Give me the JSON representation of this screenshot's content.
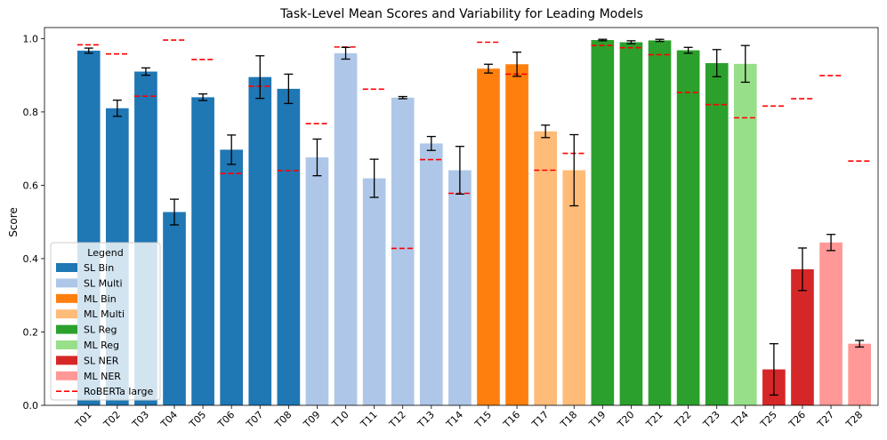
{
  "chart_data": {
    "type": "bar",
    "title": "Task-Level Mean Scores and Variability for Leading Models",
    "xlabel": "",
    "ylabel": "Score",
    "ylim": [
      0,
      1.03
    ],
    "yticks": [
      "0.0",
      "0.2",
      "0.4",
      "0.6",
      "0.8",
      "1.0"
    ],
    "categories": [
      "T01",
      "T02",
      "T03",
      "T04",
      "T05",
      "T06",
      "T07",
      "T08",
      "T09",
      "T10",
      "T11",
      "T12",
      "T13",
      "T14",
      "T15",
      "T16",
      "T17",
      "T18",
      "T19",
      "T20",
      "T21",
      "T22",
      "T23",
      "T24",
      "T25",
      "T26",
      "T27",
      "T28"
    ],
    "groups": [
      "SL Bin",
      "SL Bin",
      "SL Bin",
      "SL Bin",
      "SL Bin",
      "SL Bin",
      "SL Bin",
      "SL Bin",
      "SL Multi",
      "SL Multi",
      "SL Multi",
      "SL Multi",
      "SL Multi",
      "SL Multi",
      "ML Bin",
      "ML Bin",
      "ML Multi",
      "ML Multi",
      "SL Reg",
      "SL Reg",
      "SL Reg",
      "SL Reg",
      "SL Reg",
      "ML Reg",
      "SL NER",
      "SL NER",
      "ML NER",
      "ML NER"
    ],
    "values": [
      0.967,
      0.81,
      0.91,
      0.527,
      0.84,
      0.697,
      0.895,
      0.863,
      0.676,
      0.96,
      0.619,
      0.839,
      0.714,
      0.641,
      0.918,
      0.93,
      0.747,
      0.641,
      0.996,
      0.99,
      0.995,
      0.968,
      0.933,
      0.931,
      0.098,
      0.371,
      0.444,
      0.168
    ],
    "errors": [
      0.007,
      0.022,
      0.01,
      0.035,
      0.009,
      0.04,
      0.058,
      0.04,
      0.05,
      0.016,
      0.052,
      0.003,
      0.019,
      0.065,
      0.012,
      0.033,
      0.017,
      0.097,
      0.002,
      0.004,
      0.003,
      0.008,
      0.037,
      0.05,
      0.07,
      0.058,
      0.022,
      0.009
    ],
    "baseline": {
      "name": "RoBERTa large",
      "values": [
        0.983,
        0.958,
        0.843,
        0.996,
        0.943,
        0.632,
        0.87,
        0.64,
        0.768,
        0.977,
        0.862,
        0.428,
        0.67,
        0.578,
        0.99,
        0.903,
        0.641,
        0.687,
        0.981,
        0.975,
        0.956,
        0.853,
        0.82,
        0.784,
        0.816,
        0.836,
        0.899,
        0.666
      ]
    },
    "legend": {
      "title": "Legend",
      "position": "lower-left",
      "entries": [
        {
          "label": "SL Bin",
          "color": "#1f77b4"
        },
        {
          "label": "SL Multi",
          "color": "#aec7e8"
        },
        {
          "label": "ML Bin",
          "color": "#ff7f0e"
        },
        {
          "label": "ML Multi",
          "color": "#ffbb78"
        },
        {
          "label": "SL Reg",
          "color": "#2ca02c"
        },
        {
          "label": "ML Reg",
          "color": "#98df8a"
        },
        {
          "label": "SL NER",
          "color": "#d62728"
        },
        {
          "label": "ML NER",
          "color": "#ff9896"
        },
        {
          "label": "RoBERTa large",
          "color": "#ff0000",
          "style": "dashed"
        }
      ]
    }
  }
}
